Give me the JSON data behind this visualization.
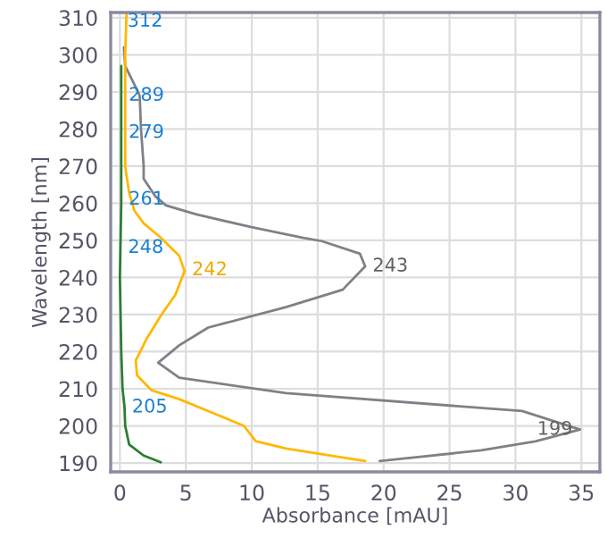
{
  "chart_data": {
    "type": "line",
    "xlabel": "Absorbance [mAU]",
    "ylabel": "Wavelength [nm]",
    "xlim": [
      -0.7,
      36.4
    ],
    "ylim": [
      187.6,
      311.4
    ],
    "xticks": [
      0,
      5,
      10,
      15,
      20,
      25,
      30,
      35
    ],
    "yticks": [
      190,
      200,
      210,
      220,
      230,
      240,
      250,
      260,
      270,
      280,
      290,
      300,
      310
    ],
    "grid": true,
    "marker": "none",
    "line_style": "solid",
    "series": [
      {
        "color": "#808088",
        "x": [
          19.7,
          27.4,
          31.5,
          34.9,
          30.5,
          12.6,
          4.5,
          2.9,
          4.5,
          6.7,
          12.6,
          16.9,
          18.6,
          18.2,
          15.3,
          13.9,
          9.9,
          5.8,
          3.5,
          2.7,
          1.8,
          1.8,
          1.6,
          1.5,
          1.1,
          0.4,
          0.3
        ],
        "values": [
          190.5,
          193.4,
          195.8,
          199,
          204,
          208.8,
          213,
          217,
          221.7,
          226.5,
          232,
          236.7,
          243,
          246.4,
          249.8,
          250.7,
          253.6,
          257,
          259.4,
          261.8,
          266.6,
          270,
          280,
          289,
          292,
          297,
          302
        ]
      },
      {
        "color": "#ffb800",
        "x": [
          18.6,
          12.6,
          10.3,
          9.4,
          6.7,
          4.5,
          2.4,
          1.3,
          1.2,
          2.0,
          3.1,
          4.2,
          4.9,
          4.5,
          3.1,
          1.8,
          1.1,
          0.7,
          0.4,
          0.4,
          0.4,
          0.5
        ],
        "values": [
          190.5,
          193.9,
          195.9,
          200,
          204,
          207.2,
          209.6,
          213.6,
          217.6,
          223.3,
          229.7,
          235.3,
          241.7,
          245.8,
          250.7,
          254.6,
          258,
          262.8,
          270,
          280,
          300,
          311
        ]
      },
      {
        "color": "#2e7d32",
        "x": [
          3.1,
          1.8,
          0.7,
          0.4,
          0.35,
          0.2,
          0.1,
          0.05,
          0.0,
          0.05,
          0.1,
          0.1,
          0.1
        ],
        "values": [
          190.2,
          192,
          195,
          200,
          205,
          210,
          220,
          230,
          240,
          250,
          260,
          280,
          297
        ]
      }
    ],
    "annotations": [
      {
        "text": "312",
        "x": 0.0,
        "y": 312
      },
      {
        "text": "289",
        "x": 0.1,
        "y": 289
      },
      {
        "text": "279",
        "x": 0.1,
        "y": 279
      },
      {
        "text": "261",
        "x": 0.1,
        "y": 261
      },
      {
        "text": "248",
        "x": 0.05,
        "y": 248
      },
      {
        "text": "242",
        "x": 4.9,
        "y": 242
      },
      {
        "text": "243",
        "x": 18.6,
        "y": 243
      },
      {
        "text": "205",
        "x": 0.35,
        "y": 205
      },
      {
        "text": "199",
        "x": 34.9,
        "y": 199
      }
    ]
  }
}
